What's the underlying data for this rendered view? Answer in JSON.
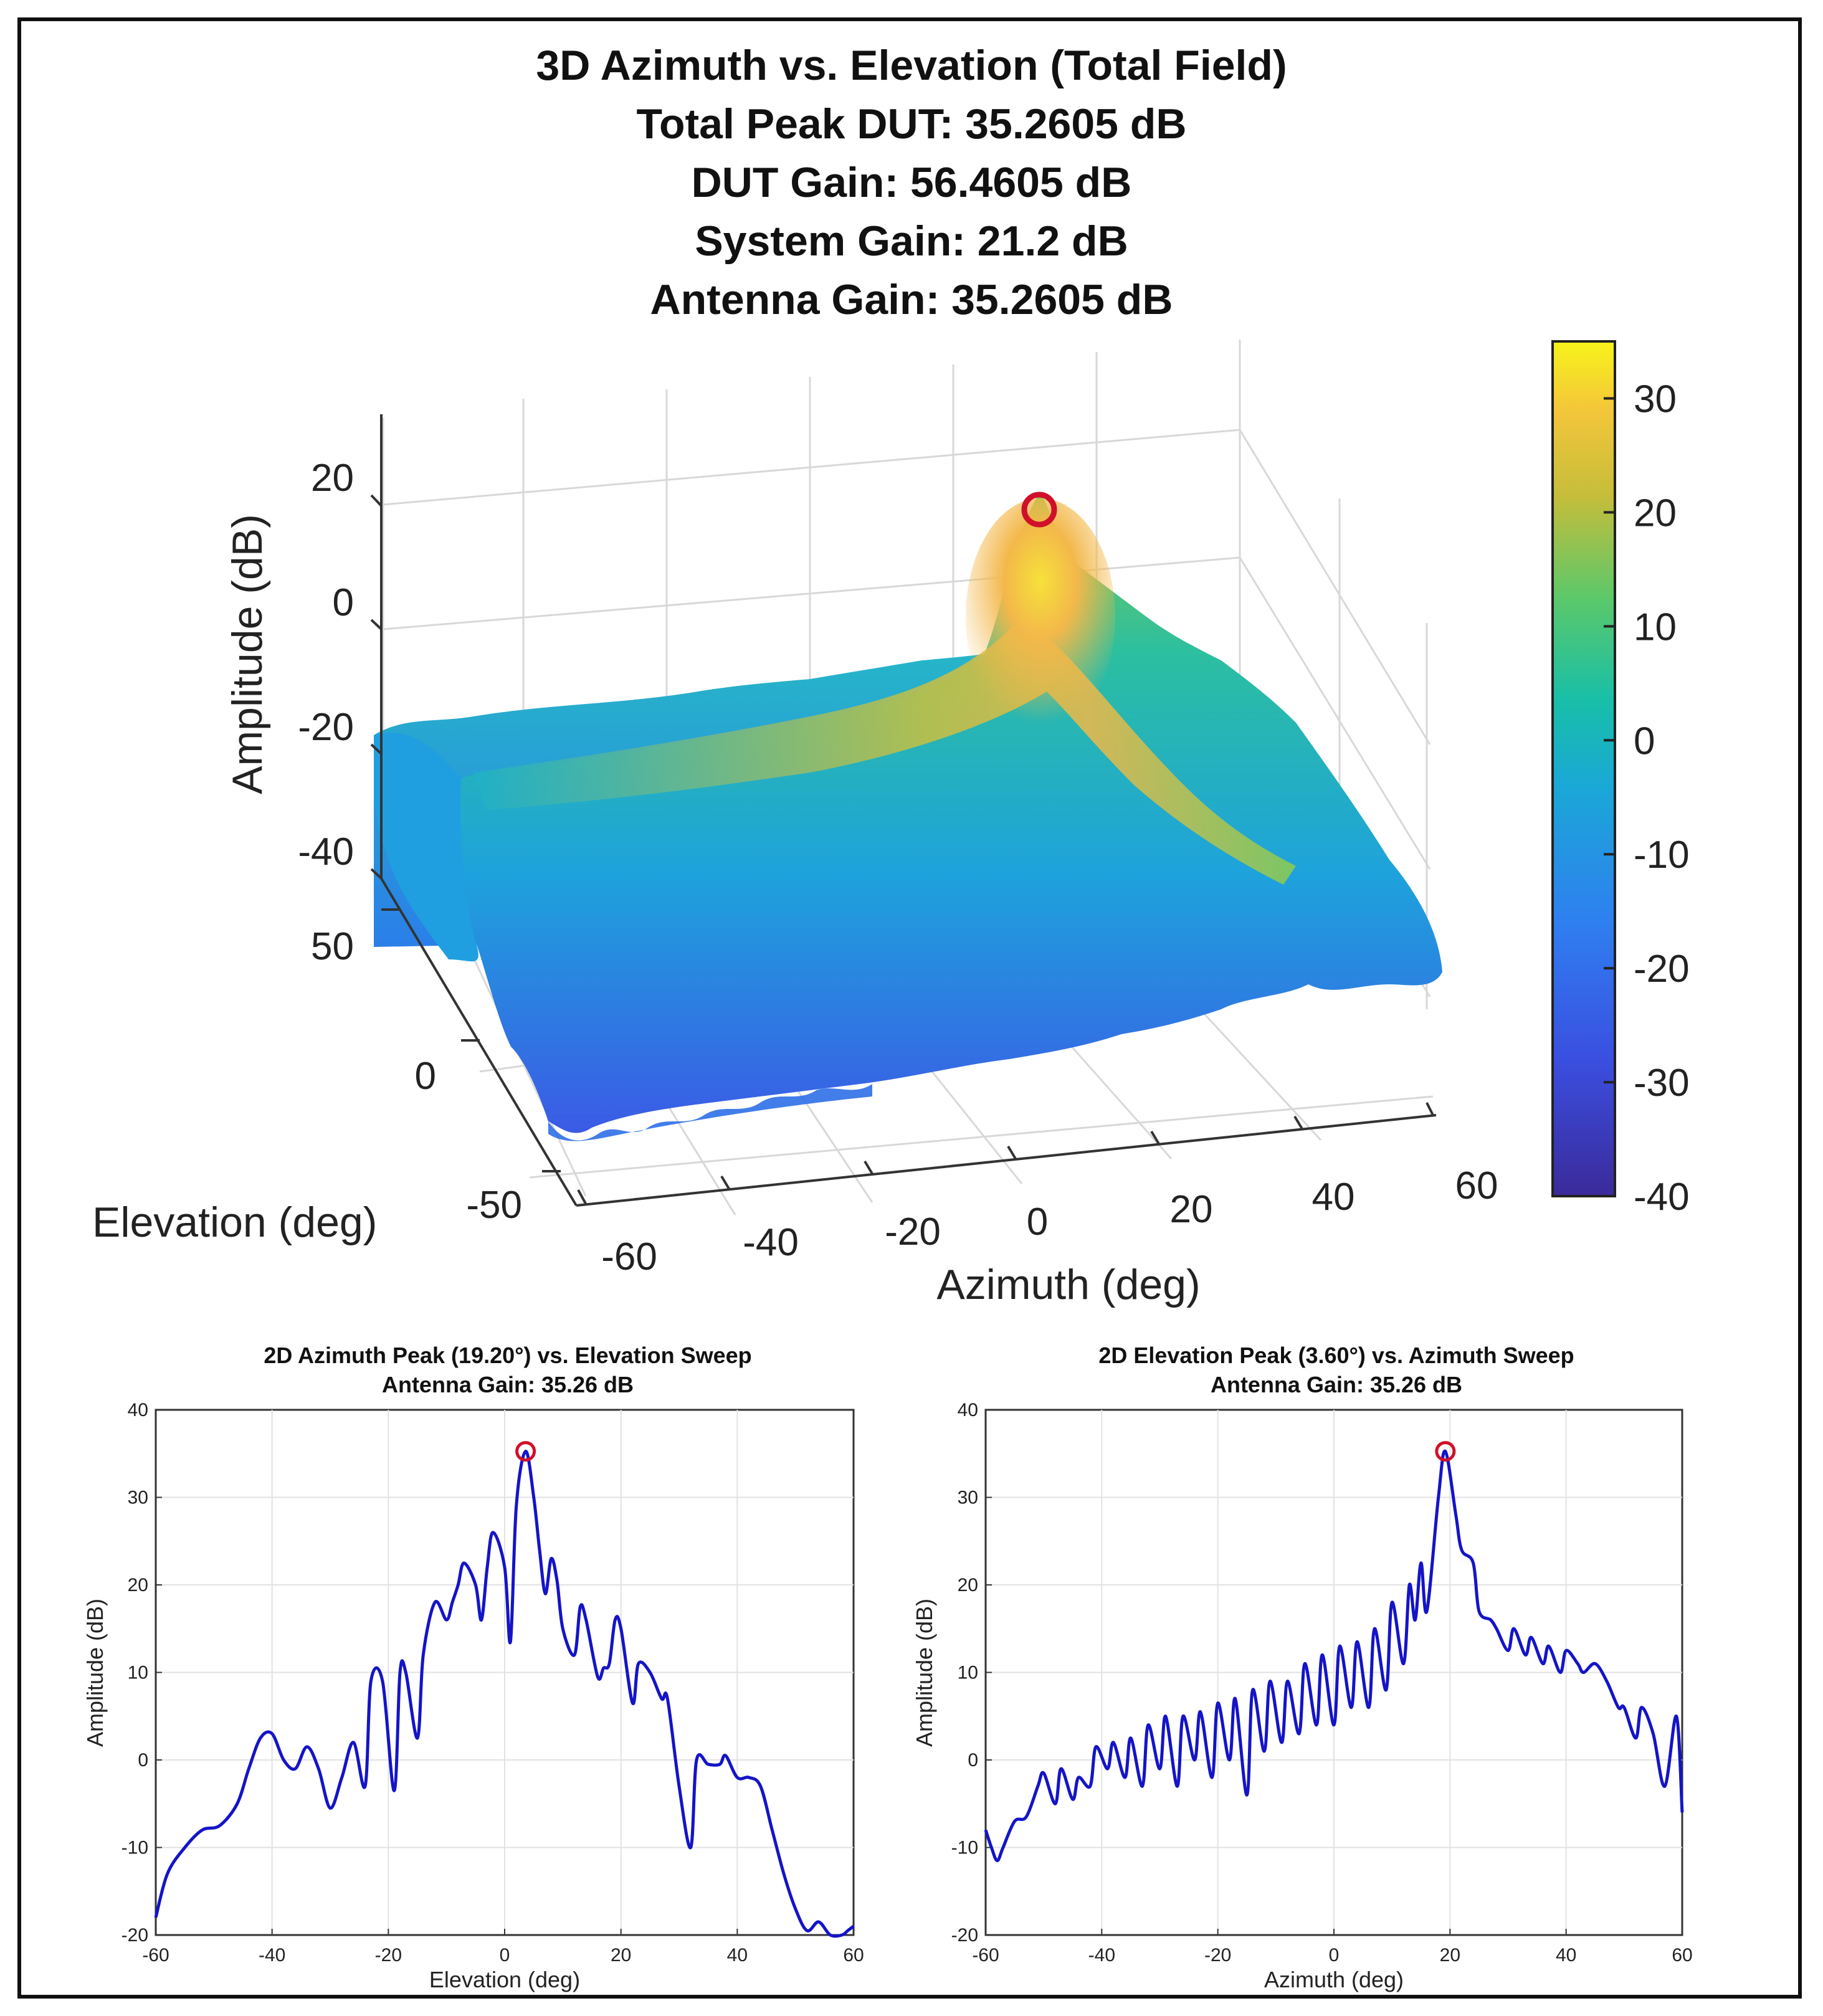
{
  "figure": {
    "main_title": [
      "3D Azimuth vs. Elevation (Total Field)",
      "Total Peak DUT: 35.2605 dB",
      "DUT Gain: 56.4605 dB",
      "System Gain: 21.2 dB",
      "Antenna Gain: 35.2605 dB"
    ]
  },
  "chart_data": [
    {
      "type": "surface",
      "title": "3D Azimuth vs. Elevation (Total Field)",
      "xlabel": "Azimuth (deg)",
      "ylabel": "Elevation (deg)",
      "zlabel": "Amplitude (dB)",
      "xlim": [
        -60,
        60
      ],
      "ylim": [
        -60,
        60
      ],
      "zlim": [
        -40,
        30
      ],
      "x_ticks": [
        "-60",
        "-40",
        "-20",
        "0",
        "20",
        "40",
        "60"
      ],
      "y_ticks": [
        "-50",
        "0",
        "50"
      ],
      "z_ticks": [
        "-40",
        "-20",
        "0",
        "20"
      ],
      "peak": {
        "azimuth": 19.2,
        "elevation": 3.6,
        "amplitude": 35.2605
      },
      "colorbar": {
        "range": [
          -40,
          35
        ],
        "ticks": [
          "-40",
          "-30",
          "-20",
          "-10",
          "0",
          "10",
          "20",
          "30"
        ]
      },
      "grid": true
    },
    {
      "type": "line",
      "title": "2D Azimuth Peak (19.20°) vs. Elevation Sweep",
      "subtitle": "Antenna Gain: 35.26 dB",
      "xlabel": "Elevation (deg)",
      "ylabel": "Amplitude (dB)",
      "xlim": [
        -60,
        60
      ],
      "ylim": [
        -20,
        40
      ],
      "x_ticks": [
        "-60",
        "-40",
        "-20",
        "0",
        "20",
        "40",
        "60"
      ],
      "y_ticks": [
        "-20",
        "-10",
        "0",
        "10",
        "20",
        "30",
        "40"
      ],
      "grid": true,
      "series": [
        {
          "color": "#1414c8",
          "x": [
            -60,
            -58,
            -55,
            -52,
            -49,
            -46,
            -44,
            -42,
            -40,
            -38,
            -36,
            -34,
            -32,
            -30,
            -28,
            -26,
            -24,
            -23,
            -21,
            -19,
            -18,
            -17,
            -15,
            -14,
            -12,
            -10,
            -9,
            -8,
            -7,
            -5,
            -4,
            -3,
            -2,
            0,
            1,
            2,
            3.6,
            5,
            6,
            7,
            8,
            9,
            10,
            12,
            13,
            14,
            16,
            17,
            18,
            19,
            20,
            22,
            23,
            25,
            27,
            28,
            30,
            32,
            33,
            35,
            37,
            38,
            40,
            42,
            44,
            46,
            48,
            50,
            52,
            54,
            56,
            58,
            59,
            60
          ],
          "y": [
            -18,
            -13,
            -10,
            -8,
            -7.5,
            -5,
            -1,
            2.5,
            3,
            0,
            -1,
            1.5,
            -1,
            -5.5,
            -2,
            2,
            -3,
            9,
            9,
            -3.5,
            10,
            10,
            2.5,
            12,
            18,
            16,
            18,
            20,
            22.5,
            20,
            16,
            22,
            26,
            22,
            13.5,
            29,
            35.26,
            30,
            24,
            19,
            23,
            20.5,
            15,
            12,
            17.5,
            16,
            9.5,
            10.5,
            11,
            16,
            15,
            6.5,
            11,
            10,
            7,
            7,
            -3,
            -10,
            0,
            -0.5,
            -0.5,
            0.5,
            -2,
            -2,
            -3,
            -8,
            -13,
            -17,
            -19.5,
            -18.5,
            -20,
            -20,
            -19.5,
            -19
          ]
        }
      ],
      "peak_marker": {
        "x": 3.6,
        "y": 35.26,
        "color": "#d0102a"
      }
    },
    {
      "type": "line",
      "title": "2D Elevation Peak (3.60°) vs. Azimuth Sweep",
      "subtitle": "Antenna Gain: 35.26 dB",
      "xlabel": "Azimuth (deg)",
      "ylabel": "Amplitude (dB)",
      "xlim": [
        -60,
        60
      ],
      "ylim": [
        -20,
        40
      ],
      "x_ticks": [
        "-60",
        "-40",
        "-20",
        "0",
        "20",
        "40",
        "60"
      ],
      "y_ticks": [
        "-20",
        "-10",
        "0",
        "10",
        "20",
        "30",
        "40"
      ],
      "grid": true,
      "series": [
        {
          "color": "#1414c8",
          "x": [
            -60,
            -59,
            -58,
            -57,
            -55,
            -53,
            -51,
            -50,
            -48,
            -47,
            -45,
            -44,
            -42,
            -41,
            -39,
            -38,
            -36,
            -35,
            -33,
            -32,
            -30,
            -29,
            -27,
            -26,
            -24,
            -23,
            -21,
            -20,
            -18,
            -17,
            -15,
            -14,
            -12,
            -11,
            -9,
            -8,
            -6,
            -5,
            -3,
            -2,
            0,
            1,
            3,
            4,
            6,
            7,
            9,
            10,
            12,
            13,
            14,
            15,
            16,
            18,
            19.2,
            21,
            22,
            24,
            25,
            27,
            28,
            30,
            31,
            33,
            34,
            36,
            37,
            39,
            40,
            42,
            43,
            45,
            47,
            49,
            50,
            52,
            53,
            55,
            57,
            59,
            60
          ],
          "y": [
            -8,
            -10,
            -11.5,
            -10,
            -7,
            -6.5,
            -3,
            -1.5,
            -5,
            -1,
            -4.5,
            -2,
            -3,
            1.5,
            -1,
            2,
            -2,
            2.5,
            -3,
            4,
            -1,
            5,
            -3,
            5,
            0,
            5.5,
            -2,
            6.5,
            0,
            7,
            -4,
            8,
            1,
            9,
            2,
            9,
            3,
            11,
            4,
            12,
            4,
            13,
            6,
            13.5,
            6,
            15,
            8,
            18,
            11,
            20,
            16,
            22.5,
            17,
            30,
            35.26,
            28,
            24,
            22.5,
            17,
            16,
            15,
            12.5,
            15,
            12,
            14,
            11,
            13,
            10,
            12.5,
            11,
            10,
            11,
            9,
            6,
            6,
            2.5,
            6,
            3,
            -3,
            5,
            -6
          ]
        }
      ],
      "peak_marker": {
        "x": 19.2,
        "y": 35.26,
        "color": "#d0102a"
      }
    }
  ]
}
